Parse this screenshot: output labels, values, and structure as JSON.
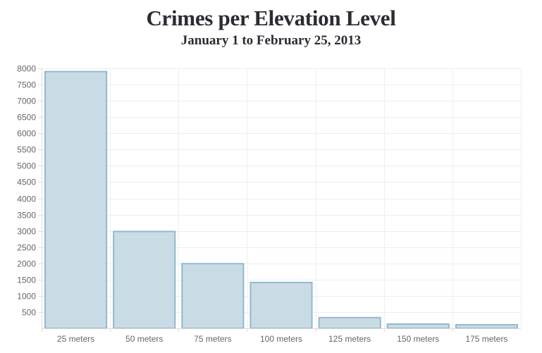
{
  "chart_data": {
    "type": "bar",
    "title": "Crimes per Elevation Level",
    "subtitle": "January 1 to February 25, 2013",
    "categories": [
      "25 meters",
      "50 meters",
      "75 meters",
      "100 meters",
      "125 meters",
      "150 meters",
      "175 meters"
    ],
    "values": [
      7900,
      2980,
      1990,
      1410,
      330,
      130,
      110
    ],
    "yticks": [
      500,
      1000,
      1500,
      2000,
      2500,
      3000,
      3500,
      4000,
      4500,
      5000,
      5500,
      6000,
      6500,
      7000,
      7500,
      8000
    ],
    "ylim": [
      0,
      8000
    ],
    "xlabel": "",
    "ylabel": "",
    "grid": true,
    "colors": {
      "bar_fill": "#c9dbe5",
      "bar_stroke": "#93b9cd",
      "grid": "#eeeeee",
      "axis": "#dddddd",
      "title": "#2b2b33",
      "tick": "#666666"
    }
  }
}
